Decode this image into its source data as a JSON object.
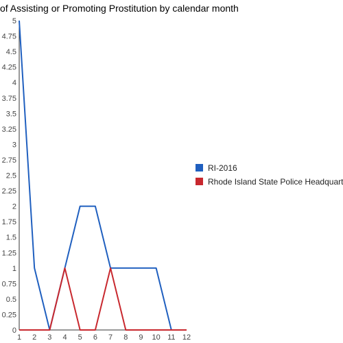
{
  "chart_data": {
    "type": "line",
    "title": "of Assisting or Promoting Prostitution by calendar month",
    "xlabel": "",
    "ylabel": "",
    "x": [
      1,
      2,
      3,
      4,
      5,
      6,
      7,
      8,
      9,
      10,
      11,
      12
    ],
    "x_tick_labels": [
      "1",
      "2",
      "3",
      "4",
      "5",
      "6",
      "7",
      "8",
      "9",
      "10",
      "11",
      "12"
    ],
    "xlim": [
      1,
      12
    ],
    "ylim": [
      0,
      5
    ],
    "y_tick_labels": [
      "0",
      "0.25",
      "0.5",
      "0.75",
      "1",
      "1.25",
      "1.5",
      "1.75",
      "2",
      "2.25",
      "2.5",
      "2.75",
      "3",
      "3.25",
      "3.5",
      "3.75",
      "4",
      "4.25",
      "4.5",
      "4.75",
      "5"
    ],
    "grid": false,
    "legend_position": "right",
    "series": [
      {
        "name": "RI-2016",
        "color": "#1f5fbf",
        "values": [
          5,
          1,
          0,
          1,
          2,
          2,
          1,
          1,
          1,
          1,
          0,
          0
        ]
      },
      {
        "name": "Rhode Island State Police Headquarters",
        "color": "#c8282e",
        "values": [
          0,
          0,
          0,
          1,
          0,
          0,
          1,
          0,
          0,
          0,
          0,
          0
        ]
      }
    ]
  }
}
